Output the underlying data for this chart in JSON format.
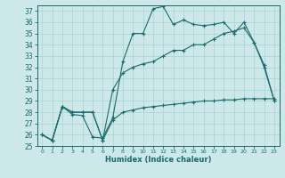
{
  "xlabel": "Humidex (Indice chaleur)",
  "bg_color": "#cce8e8",
  "grid_color": "#b0d4d4",
  "line_color": "#1a6b6b",
  "xlim": [
    -0.5,
    23.5
  ],
  "ylim": [
    25,
    37.5
  ],
  "yticks": [
    25,
    26,
    27,
    28,
    29,
    30,
    31,
    32,
    33,
    34,
    35,
    36,
    37
  ],
  "xticks": [
    0,
    1,
    2,
    3,
    4,
    5,
    6,
    7,
    8,
    9,
    10,
    11,
    12,
    13,
    14,
    15,
    16,
    17,
    18,
    19,
    20,
    21,
    22,
    23
  ],
  "line1_x": [
    0,
    1,
    2,
    3,
    4,
    5,
    6,
    7,
    8,
    9,
    10,
    11,
    12,
    13,
    14,
    15,
    16,
    17,
    18,
    19,
    20,
    21,
    22,
    23
  ],
  "line1_y": [
    26.0,
    25.5,
    28.5,
    27.8,
    27.7,
    25.8,
    25.7,
    27.5,
    32.5,
    35.0,
    35.0,
    37.2,
    37.4,
    35.8,
    36.2,
    35.8,
    35.7,
    35.8,
    36.0,
    35.0,
    36.0,
    34.2,
    32.0,
    29.0
  ],
  "line2_x": [
    0,
    1,
    2,
    3,
    4,
    5,
    6,
    7,
    8,
    9,
    10,
    11,
    12,
    13,
    14,
    15,
    16,
    17,
    18,
    19,
    20,
    21,
    22,
    23
  ],
  "line2_y": [
    26.0,
    25.5,
    28.5,
    28.0,
    28.0,
    28.0,
    25.5,
    30.0,
    31.5,
    32.0,
    32.3,
    32.5,
    33.0,
    33.5,
    33.5,
    34.0,
    34.0,
    34.5,
    35.0,
    35.2,
    35.5,
    34.2,
    32.2,
    29.0
  ],
  "line3_x": [
    0,
    1,
    2,
    3,
    4,
    5,
    6,
    7,
    8,
    9,
    10,
    11,
    12,
    13,
    14,
    15,
    16,
    17,
    18,
    19,
    20,
    21,
    22,
    23
  ],
  "line3_y": [
    26.0,
    25.5,
    28.5,
    28.0,
    28.0,
    28.0,
    25.5,
    27.3,
    28.0,
    28.2,
    28.4,
    28.5,
    28.6,
    28.7,
    28.8,
    28.9,
    29.0,
    29.0,
    29.1,
    29.1,
    29.2,
    29.2,
    29.2,
    29.2
  ]
}
